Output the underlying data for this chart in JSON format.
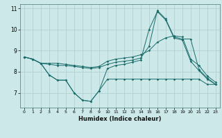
{
  "xlabel": "Humidex (Indice chaleur)",
  "bg_color": "#cce8e8",
  "line_color": "#1a6b6b",
  "grid_color": "#aacece",
  "x_values": [
    0,
    1,
    2,
    3,
    4,
    5,
    6,
    7,
    8,
    9,
    10,
    11,
    12,
    13,
    14,
    15,
    16,
    17,
    18,
    19,
    20,
    21,
    22,
    23
  ],
  "line1": [
    8.7,
    8.6,
    8.4,
    8.4,
    8.4,
    8.35,
    8.3,
    8.25,
    8.2,
    8.25,
    8.5,
    8.6,
    8.65,
    8.7,
    8.8,
    9.0,
    9.4,
    9.6,
    9.7,
    9.65,
    8.6,
    8.3,
    7.8,
    7.5
  ],
  "line2": [
    8.7,
    8.6,
    8.4,
    8.35,
    8.3,
    8.3,
    8.25,
    8.2,
    8.15,
    8.2,
    8.35,
    8.45,
    8.5,
    8.55,
    8.65,
    9.2,
    10.9,
    10.5,
    9.65,
    9.55,
    9.55,
    8.1,
    7.7,
    7.4
  ],
  "line3": [
    8.7,
    8.6,
    8.4,
    7.85,
    7.6,
    7.6,
    7.0,
    6.65,
    6.6,
    7.1,
    7.65,
    7.65,
    7.65,
    7.65,
    7.65,
    7.65,
    7.65,
    7.65,
    7.65,
    7.65,
    7.65,
    7.65,
    7.4,
    7.4
  ],
  "line4": [
    8.7,
    8.6,
    8.4,
    7.85,
    7.6,
    7.6,
    7.0,
    6.65,
    6.6,
    7.1,
    8.15,
    8.3,
    8.35,
    8.45,
    8.55,
    10.0,
    10.85,
    10.45,
    9.6,
    9.5,
    8.5,
    8.05,
    7.65,
    7.4
  ],
  "xlim": [
    -0.5,
    23.5
  ],
  "ylim": [
    6.3,
    11.2
  ],
  "yticks": [
    7,
    8,
    9,
    10,
    11
  ],
  "xticks": [
    0,
    1,
    2,
    3,
    4,
    5,
    6,
    7,
    8,
    9,
    10,
    11,
    12,
    13,
    14,
    15,
    16,
    17,
    18,
    19,
    20,
    21,
    22,
    23
  ]
}
